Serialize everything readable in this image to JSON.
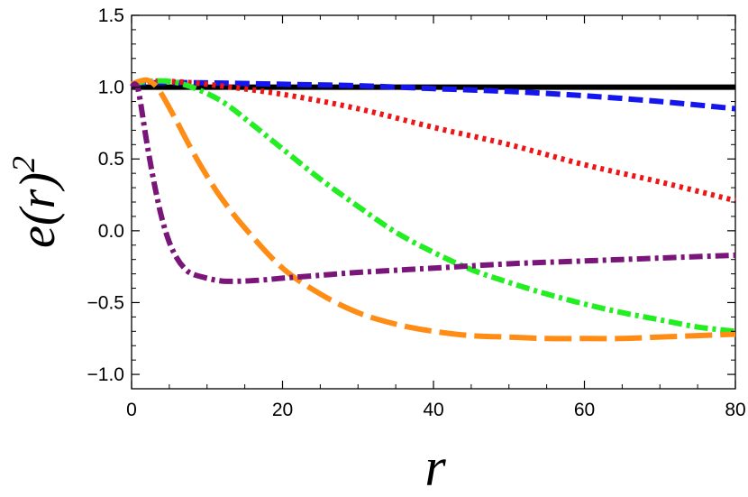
{
  "chart_data": {
    "type": "line",
    "title": "",
    "xlabel": "r",
    "ylabel_base": "e(r)",
    "ylabel_exponent": "2",
    "xlim": [
      0,
      80
    ],
    "ylim": [
      -1.1,
      1.5
    ],
    "x_ticks": [
      0,
      20,
      40,
      60,
      80
    ],
    "x_tick_labels": [
      "0",
      "20",
      "40",
      "60",
      "80"
    ],
    "y_ticks": [
      -1.0,
      -0.5,
      0.0,
      0.5,
      1.0,
      1.5
    ],
    "y_tick_labels": [
      "−1.0",
      "−0.5",
      "0.0",
      "0.5",
      "1.0",
      "1.5"
    ],
    "grid": false,
    "legend": "none",
    "series": [
      {
        "color": "#000000",
        "style": "solid",
        "x": [
          0,
          80
        ],
        "y": [
          1.0,
          1.0
        ]
      },
      {
        "color": "#1515ee",
        "style": "dashed",
        "x": [
          0,
          2,
          10,
          20,
          30,
          40,
          50,
          60,
          70,
          80
        ],
        "y": [
          1.02,
          1.03,
          1.03,
          1.02,
          1.01,
          0.99,
          0.97,
          0.94,
          0.9,
          0.85
        ]
      },
      {
        "color": "#ee1515",
        "style": "dotted",
        "x": [
          0,
          2,
          5,
          10,
          20,
          30,
          40,
          50,
          60,
          70,
          80
        ],
        "y": [
          1.02,
          1.04,
          1.04,
          1.02,
          0.95,
          0.85,
          0.72,
          0.6,
          0.46,
          0.34,
          0.21
        ]
      },
      {
        "color": "#22ee22",
        "style": "dashdot",
        "x": [
          0,
          2,
          5,
          8,
          12,
          16,
          20,
          25,
          30,
          35,
          40,
          45,
          50,
          55,
          60,
          65,
          70,
          75,
          80
        ],
        "y": [
          1.02,
          1.04,
          1.04,
          1.0,
          0.9,
          0.74,
          0.57,
          0.36,
          0.17,
          -0.01,
          -0.15,
          -0.27,
          -0.36,
          -0.44,
          -0.51,
          -0.57,
          -0.62,
          -0.67,
          -0.7
        ]
      },
      {
        "color": "#ff8c15",
        "style": "longdash",
        "x": [
          0,
          1,
          2,
          3,
          4,
          6,
          8,
          10,
          12,
          15,
          20,
          25,
          30,
          35,
          40,
          45,
          50,
          55,
          60,
          65,
          70,
          75,
          80
        ],
        "y": [
          1.02,
          1.04,
          1.05,
          1.02,
          0.95,
          0.76,
          0.56,
          0.38,
          0.22,
          0.02,
          -0.26,
          -0.44,
          -0.57,
          -0.65,
          -0.7,
          -0.73,
          -0.74,
          -0.75,
          -0.75,
          -0.75,
          -0.74,
          -0.73,
          -0.72
        ]
      },
      {
        "color": "#7a157a",
        "style": "dashdot",
        "x": [
          0,
          0.5,
          1,
          2,
          3,
          4,
          5,
          6,
          7,
          8,
          10,
          12,
          15,
          18,
          20,
          25,
          30,
          40,
          50,
          60,
          70,
          80
        ],
        "y": [
          1.0,
          1.02,
          0.95,
          0.62,
          0.33,
          0.09,
          -0.08,
          -0.19,
          -0.26,
          -0.3,
          -0.33,
          -0.35,
          -0.35,
          -0.34,
          -0.33,
          -0.31,
          -0.29,
          -0.26,
          -0.23,
          -0.21,
          -0.19,
          -0.17
        ]
      }
    ]
  }
}
